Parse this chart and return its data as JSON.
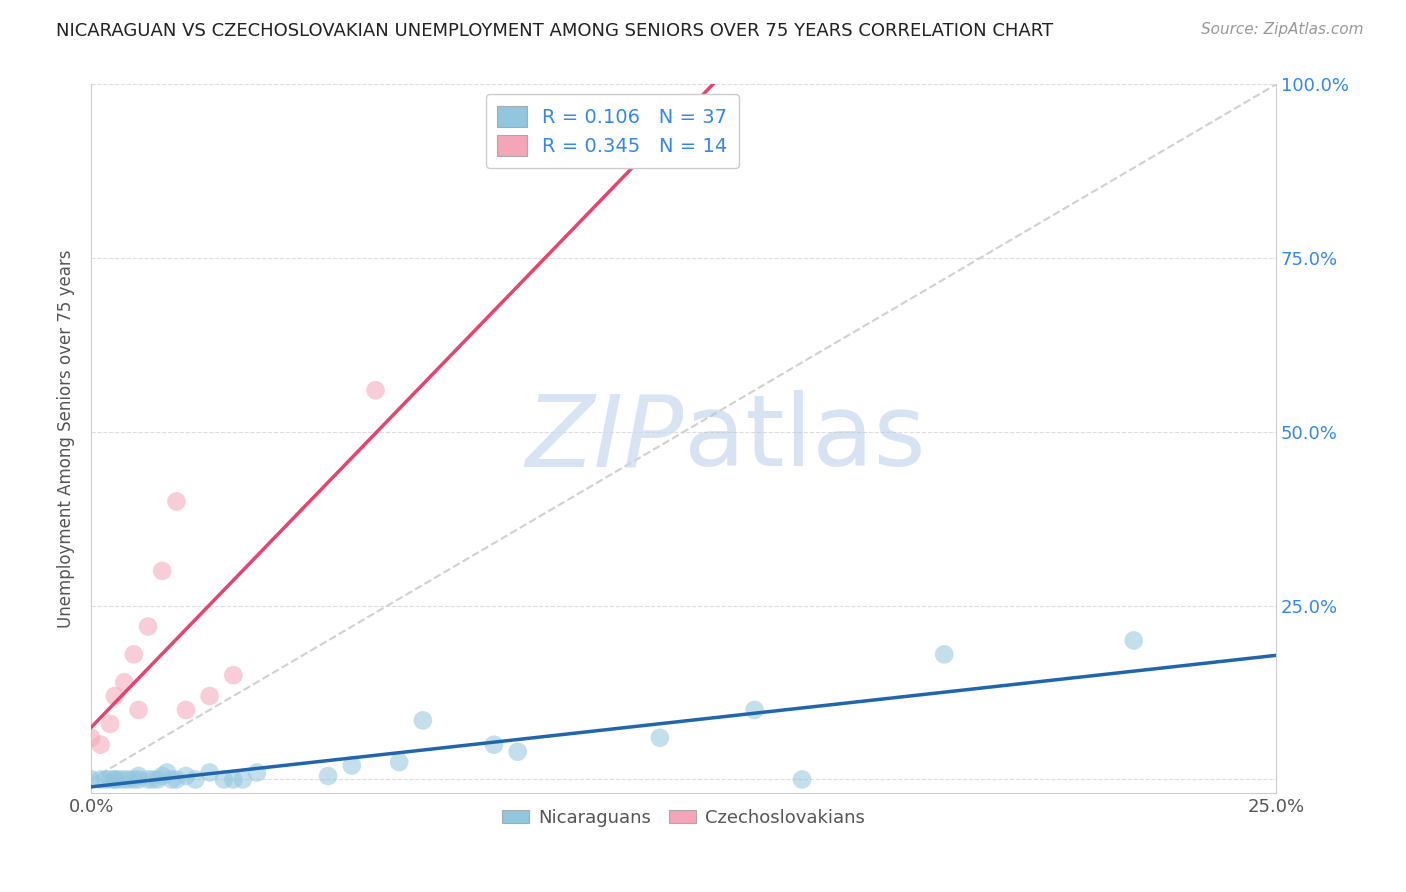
{
  "title": "NICARAGUAN VS CZECHOSLOVAKIAN UNEMPLOYMENT AMONG SENIORS OVER 75 YEARS CORRELATION CHART",
  "source": "Source: ZipAtlas.com",
  "ylabel": "Unemployment Among Seniors over 75 years",
  "xlim": [
    0.0,
    0.25
  ],
  "ylim": [
    -0.02,
    1.0
  ],
  "xticks": [
    0.0,
    0.05,
    0.1,
    0.15,
    0.2,
    0.25
  ],
  "yticks": [
    0.0,
    0.25,
    0.5,
    0.75,
    1.0
  ],
  "nicaraguan_R": 0.106,
  "nicaraguan_N": 37,
  "czechoslovakian_R": 0.345,
  "czechoslovakian_N": 14,
  "blue_color": "#92c5de",
  "pink_color": "#f4a5b8",
  "blue_line_color": "#2166ac",
  "pink_line_color": "#e8436e",
  "watermark_zip": "ZIP",
  "watermark_atlas": "atlas",
  "nicaraguan_x": [
    0.0,
    0.002,
    0.003,
    0.004,
    0.005,
    0.005,
    0.006,
    0.007,
    0.008,
    0.009,
    0.01,
    0.01,
    0.012,
    0.013,
    0.014,
    0.015,
    0.016,
    0.017,
    0.018,
    0.02,
    0.022,
    0.025,
    0.028,
    0.03,
    0.032,
    0.035,
    0.05,
    0.055,
    0.065,
    0.07,
    0.085,
    0.09,
    0.12,
    0.14,
    0.15,
    0.18,
    0.22
  ],
  "nicaraguan_y": [
    0.0,
    0.0,
    0.0,
    0.0,
    0.0,
    0.0,
    0.0,
    0.0,
    0.0,
    0.0,
    0.0,
    0.005,
    0.0,
    0.0,
    0.0,
    0.005,
    0.01,
    0.0,
    0.0,
    0.005,
    0.0,
    0.01,
    0.0,
    0.0,
    0.0,
    0.01,
    0.005,
    0.02,
    0.025,
    0.085,
    0.05,
    0.04,
    0.06,
    0.1,
    0.0,
    0.18,
    0.2
  ],
  "czechoslovakian_x": [
    0.0,
    0.002,
    0.004,
    0.005,
    0.007,
    0.009,
    0.01,
    0.012,
    0.015,
    0.018,
    0.02,
    0.025,
    0.03,
    0.06
  ],
  "czechoslovakian_y": [
    0.06,
    0.05,
    0.08,
    0.12,
    0.14,
    0.18,
    0.1,
    0.22,
    0.3,
    0.4,
    0.1,
    0.12,
    0.15,
    0.56
  ]
}
